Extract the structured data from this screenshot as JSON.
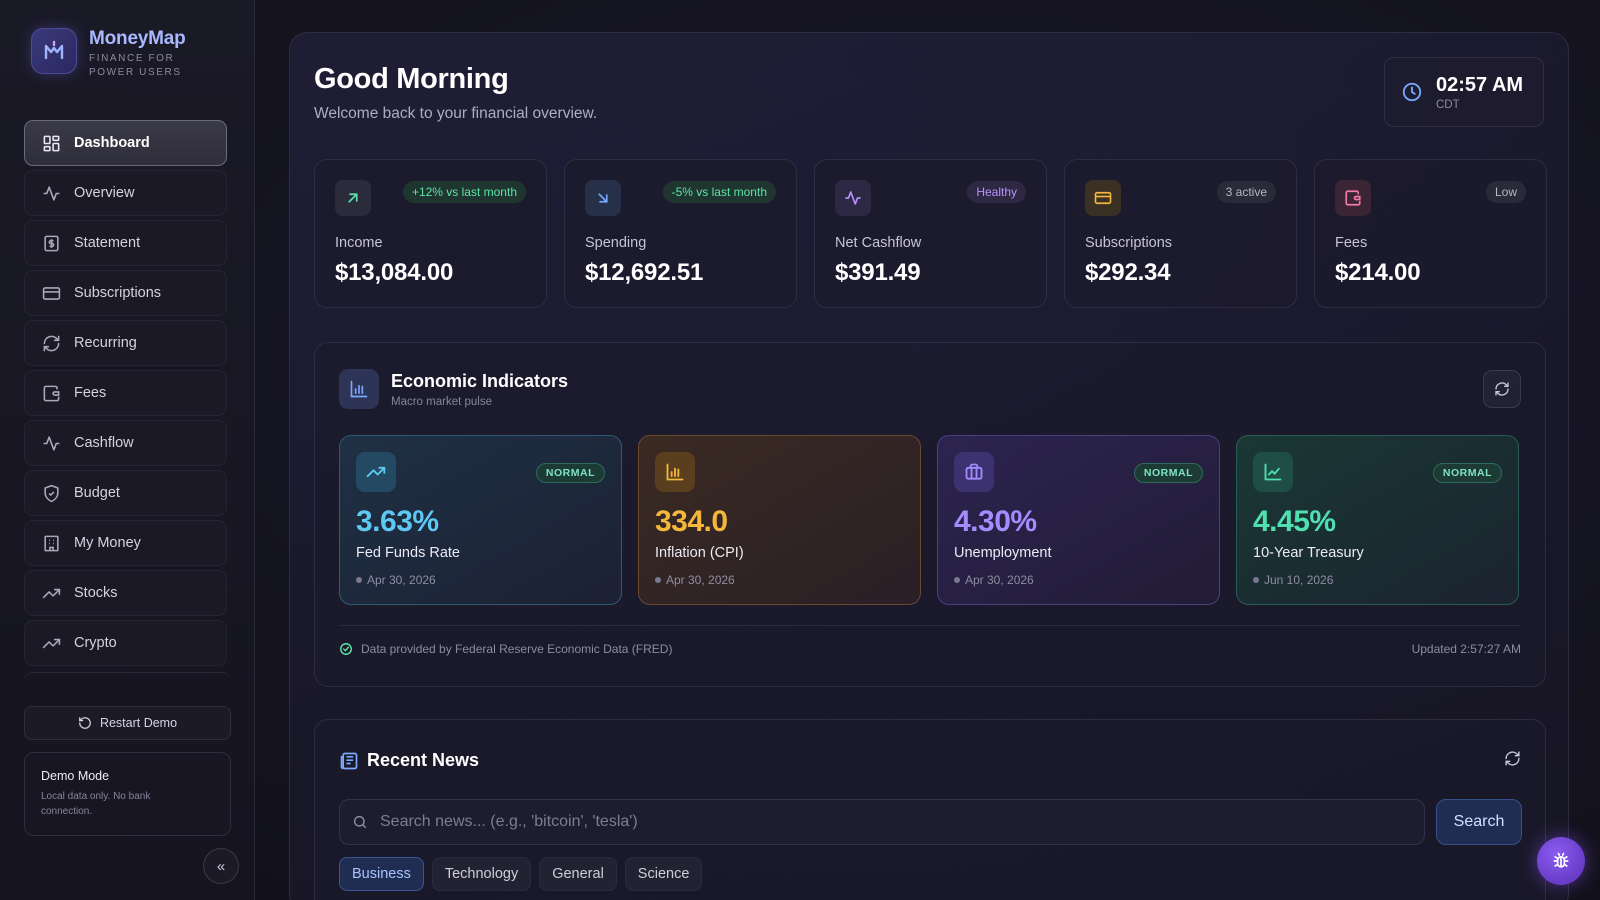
{
  "brand": {
    "name": "MoneyMap",
    "tagline": "FINANCE FOR POWER USERS"
  },
  "sidebar": {
    "items": [
      {
        "label": "Dashboard",
        "icon": "grid-icon",
        "active": true
      },
      {
        "label": "Overview",
        "icon": "activity-icon"
      },
      {
        "label": "Statement",
        "icon": "dollar-doc-icon"
      },
      {
        "label": "Subscriptions",
        "icon": "card-icon"
      },
      {
        "label": "Recurring",
        "icon": "refresh-icon"
      },
      {
        "label": "Fees",
        "icon": "wallet-icon"
      },
      {
        "label": "Cashflow",
        "icon": "activity-icon"
      },
      {
        "label": "Budget",
        "icon": "shield-icon"
      },
      {
        "label": "My Money",
        "icon": "bank-icon"
      },
      {
        "label": "Stocks",
        "icon": "trend-up-icon"
      },
      {
        "label": "Crypto",
        "icon": "trend-up-icon"
      }
    ],
    "restart_label": "Restart Demo",
    "demo": {
      "title": "Demo Mode",
      "description": "Local data only. No bank connection."
    },
    "collapse_label": "«"
  },
  "header": {
    "greeting": "Good Morning",
    "subtitle": "Welcome back to your financial overview.",
    "clock": {
      "time": "02:57 AM",
      "timezone": "CDT"
    }
  },
  "kpis": [
    {
      "label": "Income",
      "value": "$13,084.00",
      "badge": "+12% vs last month",
      "badge_color": "#5ee3a8",
      "icon": "arrow-up-right-icon",
      "icon_color": "#5ee3a8"
    },
    {
      "label": "Spending",
      "value": "$12,692.51",
      "badge": "-5% vs last month",
      "badge_color": "#5ee3a8",
      "icon": "arrow-down-right-icon",
      "icon_color": "#7aa8ff"
    },
    {
      "label": "Net Cashflow",
      "value": "$391.49",
      "badge": "Healthy",
      "badge_color": "#b892ff",
      "icon": "activity-icon",
      "icon_color": "#b892ff"
    },
    {
      "label": "Subscriptions",
      "value": "$292.34",
      "badge": "3 active",
      "badge_color": "#b7b6c6",
      "icon": "card-icon",
      "icon_color": "#f5b63c"
    },
    {
      "label": "Fees",
      "value": "$214.00",
      "badge": "Low",
      "badge_color": "#b7b6c6",
      "icon": "wallet-icon",
      "icon_color": "#f27aa6"
    }
  ],
  "economic": {
    "title": "Economic Indicators",
    "subtitle": "Macro market pulse",
    "indicators": [
      {
        "value": "3.63%",
        "label": "Fed Funds Rate",
        "date": "Apr 30, 2026",
        "status": "NORMAL",
        "color": "#5ec8f2",
        "icon": "trend-up-icon"
      },
      {
        "value": "334.0",
        "label": "Inflation (CPI)",
        "date": "Apr 30, 2026",
        "status": "",
        "color": "#f5b63c",
        "icon": "bar-chart-icon"
      },
      {
        "value": "4.30%",
        "label": "Unemployment",
        "date": "Apr 30, 2026",
        "status": "NORMAL",
        "color": "#a48cff",
        "icon": "briefcase-icon"
      },
      {
        "value": "4.45%",
        "label": "10-Year Treasury",
        "date": "Jun 10, 2026",
        "status": "NORMAL",
        "color": "#4fe0b0",
        "icon": "line-chart-icon"
      }
    ],
    "source": "Data provided by Federal Reserve Economic Data (FRED)",
    "updated": "Updated 2:57:27 AM"
  },
  "news": {
    "title": "Recent News",
    "search_placeholder": "Search news... (e.g., 'bitcoin', 'tesla')",
    "search_label": "Search",
    "tabs": [
      {
        "label": "Business",
        "active": true
      },
      {
        "label": "Technology"
      },
      {
        "label": "General"
      },
      {
        "label": "Science"
      }
    ]
  },
  "colors": {
    "accent": "#a9b8ff",
    "positive": "#5ee3a8",
    "bug_button": "#7a4ee0"
  }
}
